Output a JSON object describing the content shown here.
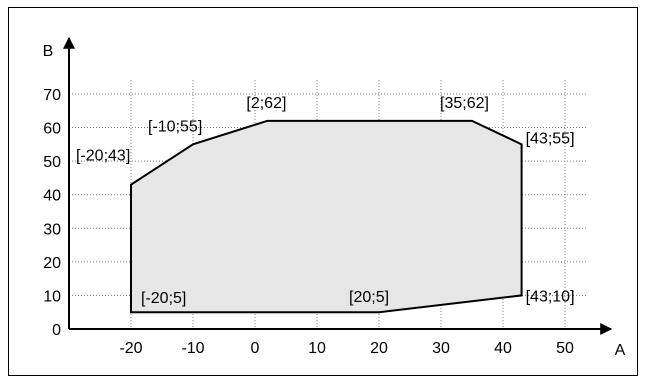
{
  "chart_data": {
    "type": "area",
    "title": "",
    "xlabel": "A",
    "ylabel": "B",
    "xlim": [
      -30,
      55
    ],
    "ylim": [
      0,
      76
    ],
    "x_ticks": [
      -20,
      -10,
      0,
      10,
      20,
      30,
      40,
      50
    ],
    "y_ticks": [
      0,
      10,
      20,
      30,
      40,
      50,
      60,
      70
    ],
    "grid": true,
    "series": [
      {
        "points": [
          {
            "x": -20,
            "y": 5,
            "label": "[-20;5]"
          },
          {
            "x": 20,
            "y": 5,
            "label": "[20;5]"
          },
          {
            "x": 43,
            "y": 10,
            "label": "[43;10]"
          },
          {
            "x": 43,
            "y": 55,
            "label": "[43;55]"
          },
          {
            "x": 35,
            "y": 62,
            "label": "[35;62]"
          },
          {
            "x": 2,
            "y": 62,
            "label": "[2;62]"
          },
          {
            "x": -10,
            "y": 55,
            "label": "[-10;55]"
          },
          {
            "x": -20,
            "y": 43,
            "label": "[-20;43]"
          }
        ]
      }
    ],
    "colors": {
      "fill": "#e6e6e6",
      "stroke": "#000000",
      "grid": "#7f7f7f"
    }
  }
}
